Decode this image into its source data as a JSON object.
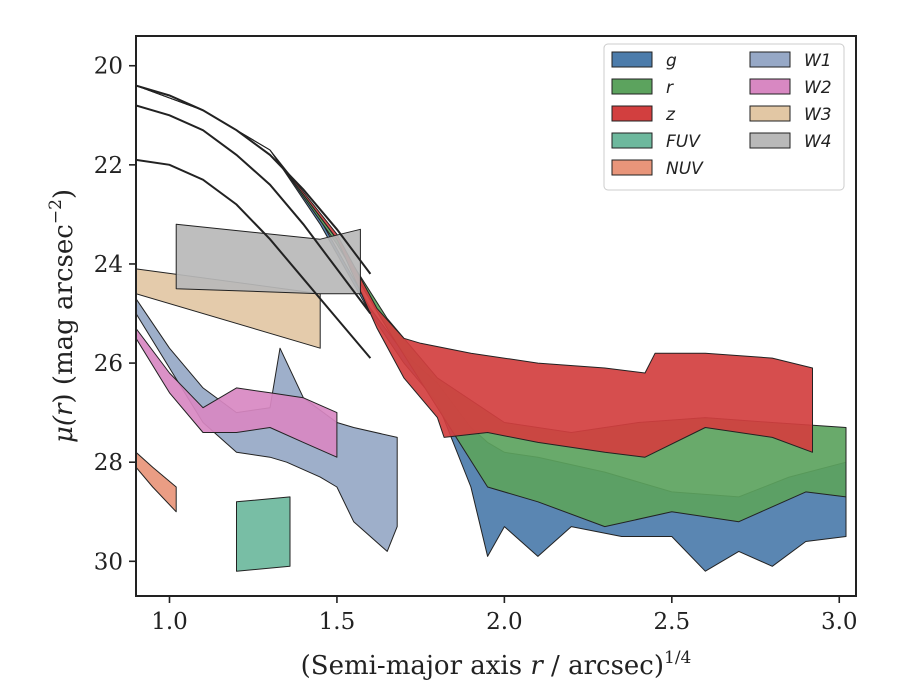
{
  "chart_data": {
    "type": "area",
    "xlabel": "(Semi-major axis r / arcsec)^{1/4}",
    "xlabel_parts": {
      "prefix": "(Semi-major axis ",
      "var": "r",
      "mid": " / arcsec)",
      "sup": "1/4"
    },
    "ylabel": "μ(r) (mag arcsec^-2)",
    "ylabel_parts": {
      "mu": "μ(",
      "var": "r",
      "mid": ") (mag arcsec",
      "sup": "−2",
      "suffix": ")"
    },
    "xlim": [
      0.9,
      3.05
    ],
    "ylim": [
      30.7,
      19.4
    ],
    "y_inverted": true,
    "x_ticks": [
      1.0,
      1.5,
      2.0,
      2.5,
      3.0
    ],
    "x_tick_labels": [
      "1.0",
      "1.5",
      "2.0",
      "2.5",
      "3.0"
    ],
    "y_ticks": [
      20,
      22,
      24,
      26,
      28,
      30
    ],
    "y_tick_labels": [
      "20",
      "22",
      "24",
      "26",
      "28",
      "30"
    ],
    "grid": false,
    "legend_position": "top-right",
    "legend_columns": 2,
    "series": [
      {
        "name": "g",
        "color": "#4c7cab",
        "upper": [
          [
            0.9,
            20.4
          ],
          [
            1.1,
            20.9
          ],
          [
            1.3,
            21.7
          ],
          [
            1.45,
            23.1
          ],
          [
            1.6,
            24.9
          ],
          [
            1.7,
            25.8
          ],
          [
            1.8,
            26.4
          ],
          [
            1.9,
            27.3
          ],
          [
            1.95,
            27.6
          ],
          [
            2.0,
            27.8
          ],
          [
            2.1,
            27.9
          ],
          [
            2.3,
            28.2
          ],
          [
            2.5,
            28.6
          ],
          [
            2.7,
            28.7
          ],
          [
            2.85,
            28.3
          ],
          [
            3.02,
            28.0
          ]
        ],
        "lower": [
          [
            0.9,
            20.4
          ],
          [
            1.1,
            20.9
          ],
          [
            1.3,
            21.7
          ],
          [
            1.45,
            23.2
          ],
          [
            1.6,
            25.0
          ],
          [
            1.7,
            26.0
          ],
          [
            1.8,
            26.8
          ],
          [
            1.9,
            28.5
          ],
          [
            1.95,
            29.9
          ],
          [
            2.0,
            29.3
          ],
          [
            2.1,
            29.9
          ],
          [
            2.2,
            29.3
          ],
          [
            2.35,
            29.5
          ],
          [
            2.5,
            29.5
          ],
          [
            2.6,
            30.2
          ],
          [
            2.7,
            29.8
          ],
          [
            2.8,
            30.1
          ],
          [
            2.9,
            29.6
          ],
          [
            3.02,
            29.5
          ]
        ]
      },
      {
        "name": "r",
        "color": "#5ca35e",
        "upper": [
          [
            0.9,
            20.4
          ],
          [
            1.1,
            20.9
          ],
          [
            1.3,
            21.7
          ],
          [
            1.5,
            23.5
          ],
          [
            1.65,
            25.1
          ],
          [
            1.8,
            26.3
          ],
          [
            2.0,
            27.2
          ],
          [
            2.2,
            27.4
          ],
          [
            2.4,
            27.2
          ],
          [
            2.6,
            27.1
          ],
          [
            2.8,
            27.2
          ],
          [
            3.02,
            27.3
          ]
        ],
        "lower": [
          [
            0.9,
            20.4
          ],
          [
            1.1,
            20.9
          ],
          [
            1.3,
            21.7
          ],
          [
            1.5,
            23.6
          ],
          [
            1.65,
            25.3
          ],
          [
            1.8,
            26.9
          ],
          [
            1.95,
            28.5
          ],
          [
            2.1,
            28.8
          ],
          [
            2.3,
            29.3
          ],
          [
            2.5,
            29.0
          ],
          [
            2.7,
            29.2
          ],
          [
            2.9,
            28.6
          ],
          [
            3.02,
            28.7
          ]
        ]
      },
      {
        "name": "z",
        "color": "#d23f3f",
        "upper": [
          [
            0.9,
            20.4
          ],
          [
            1.1,
            20.9
          ],
          [
            1.3,
            21.7
          ],
          [
            1.5,
            23.4
          ],
          [
            1.62,
            24.9
          ],
          [
            1.7,
            25.5
          ],
          [
            1.75,
            25.6
          ],
          [
            1.9,
            25.8
          ],
          [
            2.1,
            26.0
          ],
          [
            2.3,
            26.1
          ],
          [
            2.42,
            26.2
          ],
          [
            2.45,
            25.8
          ],
          [
            2.6,
            25.8
          ],
          [
            2.8,
            25.9
          ],
          [
            2.92,
            26.1
          ]
        ],
        "lower": [
          [
            0.9,
            20.4
          ],
          [
            1.1,
            20.9
          ],
          [
            1.3,
            21.7
          ],
          [
            1.5,
            23.5
          ],
          [
            1.62,
            25.3
          ],
          [
            1.7,
            26.3
          ],
          [
            1.8,
            27.1
          ],
          [
            1.82,
            27.5
          ],
          [
            1.95,
            27.4
          ],
          [
            2.1,
            27.6
          ],
          [
            2.3,
            27.8
          ],
          [
            2.42,
            27.9
          ],
          [
            2.6,
            27.3
          ],
          [
            2.8,
            27.5
          ],
          [
            2.92,
            27.8
          ]
        ]
      },
      {
        "name": "FUV",
        "color": "#6db89d",
        "upper": [
          [
            1.2,
            28.8
          ],
          [
            1.36,
            28.7
          ]
        ],
        "lower": [
          [
            1.2,
            30.2
          ],
          [
            1.36,
            30.1
          ]
        ]
      },
      {
        "name": "NUV",
        "color": "#e8957a",
        "upper": [
          [
            0.9,
            27.8
          ],
          [
            0.95,
            28.1
          ],
          [
            1.02,
            28.5
          ]
        ],
        "lower": [
          [
            0.9,
            28.1
          ],
          [
            0.95,
            28.5
          ],
          [
            1.02,
            29.0
          ]
        ]
      },
      {
        "name": "W1",
        "color": "#96a8c6",
        "upper": [
          [
            0.9,
            24.7
          ],
          [
            1.0,
            25.7
          ],
          [
            1.1,
            26.5
          ],
          [
            1.2,
            27.0
          ],
          [
            1.3,
            26.9
          ],
          [
            1.33,
            25.7
          ],
          [
            1.4,
            26.7
          ],
          [
            1.5,
            27.2
          ],
          [
            1.55,
            27.3
          ],
          [
            1.68,
            27.5
          ]
        ],
        "lower": [
          [
            0.9,
            25.0
          ],
          [
            1.0,
            26.1
          ],
          [
            1.1,
            27.2
          ],
          [
            1.2,
            27.8
          ],
          [
            1.3,
            27.9
          ],
          [
            1.35,
            28.0
          ],
          [
            1.45,
            28.3
          ],
          [
            1.5,
            28.5
          ],
          [
            1.55,
            29.2
          ],
          [
            1.65,
            29.8
          ],
          [
            1.68,
            29.3
          ]
        ]
      },
      {
        "name": "W2",
        "color": "#d888c2",
        "upper": [
          [
            0.9,
            25.3
          ],
          [
            1.0,
            26.2
          ],
          [
            1.1,
            26.9
          ],
          [
            1.2,
            26.5
          ],
          [
            1.3,
            26.6
          ],
          [
            1.4,
            26.7
          ],
          [
            1.5,
            27.0
          ]
        ],
        "lower": [
          [
            0.9,
            25.5
          ],
          [
            1.0,
            26.6
          ],
          [
            1.1,
            27.4
          ],
          [
            1.2,
            27.4
          ],
          [
            1.3,
            27.3
          ],
          [
            1.4,
            27.6
          ],
          [
            1.5,
            27.9
          ]
        ]
      },
      {
        "name": "W3",
        "color": "#e2c7a4",
        "upper": [
          [
            0.9,
            24.1
          ],
          [
            1.45,
            24.6
          ]
        ],
        "lower": [
          [
            0.9,
            24.6
          ],
          [
            1.45,
            25.7
          ]
        ]
      },
      {
        "name": "W4",
        "color": "#b9b9b9",
        "upper": [
          [
            1.02,
            23.2
          ],
          [
            1.45,
            23.5
          ],
          [
            1.57,
            23.3
          ]
        ],
        "lower": [
          [
            1.02,
            24.5
          ],
          [
            1.45,
            24.6
          ],
          [
            1.57,
            24.6
          ]
        ]
      }
    ],
    "profile_lines": [
      {
        "points": [
          [
            0.9,
            20.4
          ],
          [
            1.0,
            20.6
          ],
          [
            1.1,
            20.9
          ],
          [
            1.2,
            21.3
          ],
          [
            1.3,
            21.8
          ],
          [
            1.4,
            22.5
          ],
          [
            1.5,
            23.3
          ],
          [
            1.6,
            24.2
          ]
        ]
      },
      {
        "points": [
          [
            0.9,
            20.8
          ],
          [
            1.0,
            21.0
          ],
          [
            1.1,
            21.3
          ],
          [
            1.2,
            21.8
          ],
          [
            1.3,
            22.4
          ],
          [
            1.4,
            23.2
          ],
          [
            1.5,
            24.1
          ],
          [
            1.6,
            25.0
          ]
        ]
      },
      {
        "points": [
          [
            0.9,
            21.9
          ],
          [
            1.0,
            22.0
          ],
          [
            1.1,
            22.3
          ],
          [
            1.2,
            22.8
          ],
          [
            1.3,
            23.5
          ],
          [
            1.4,
            24.3
          ],
          [
            1.5,
            25.1
          ],
          [
            1.6,
            25.9
          ]
        ]
      }
    ]
  }
}
